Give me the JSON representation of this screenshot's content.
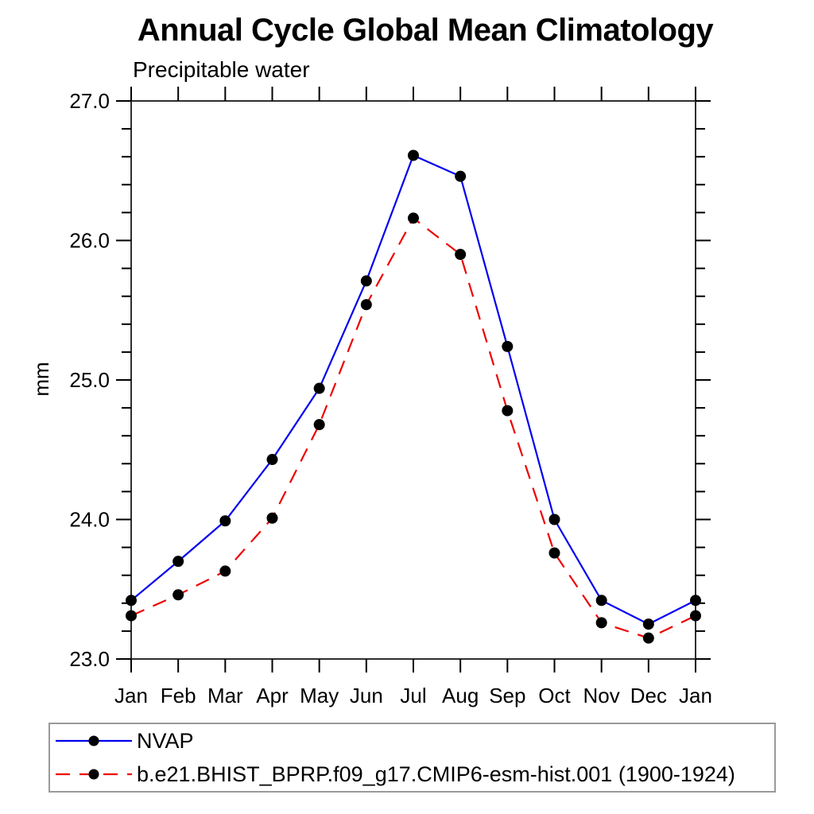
{
  "title": "Annual Cycle Global Mean Climatology",
  "subtitle": "Precipitable water",
  "ylabel": "mm",
  "chart_data": {
    "type": "line",
    "title": "Annual Cycle Global Mean Climatology",
    "subtitle": "Precipitable water",
    "xlabel": "",
    "ylabel": "mm",
    "categories": [
      "Jan",
      "Feb",
      "Mar",
      "Apr",
      "May",
      "Jun",
      "Jul",
      "Aug",
      "Sep",
      "Oct",
      "Nov",
      "Dec",
      "Jan"
    ],
    "series": [
      {
        "name": "NVAP",
        "color": "#0000ee",
        "line_style": "solid",
        "marker": "circle",
        "marker_color": "#000000",
        "values": [
          23.42,
          23.7,
          23.99,
          24.43,
          24.94,
          25.71,
          26.61,
          26.46,
          25.24,
          24.0,
          23.42,
          23.25,
          23.42
        ]
      },
      {
        "name": "b.e21.BHIST_BPRP.f09_g17.CMIP6-esm-hist.001 (1900-1924)",
        "color": "#ee0000",
        "line_style": "dashed",
        "marker": "circle",
        "marker_color": "#000000",
        "values": [
          23.31,
          23.46,
          23.63,
          24.01,
          24.68,
          25.54,
          26.16,
          25.9,
          24.78,
          23.76,
          23.26,
          23.15,
          23.31
        ]
      }
    ],
    "ylim": [
      23.0,
      27.0
    ],
    "ytick_major": [
      23.0,
      24.0,
      25.0,
      26.0,
      27.0
    ],
    "ytick_labels": [
      "23.0",
      "24.0",
      "25.0",
      "26.0",
      "27.0"
    ],
    "ytick_minor_step": 0.2,
    "grid": false,
    "legend_position": "bottom",
    "axis_color": "#2f2f2f",
    "tick_color": "#000000"
  }
}
